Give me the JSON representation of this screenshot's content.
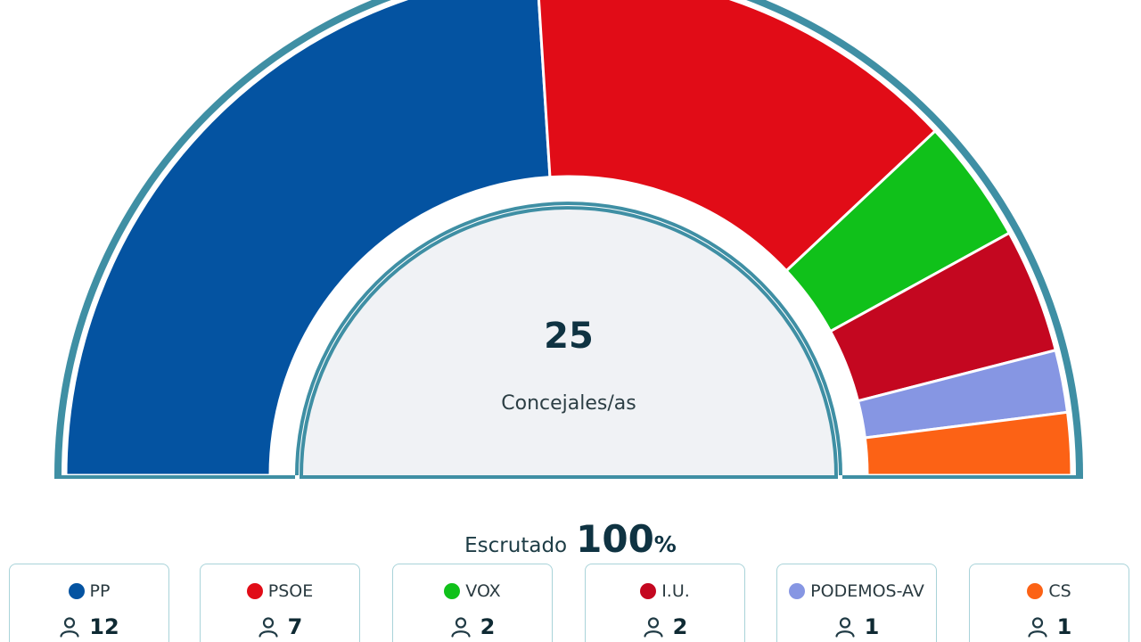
{
  "chart_data": {
    "type": "hemicycle",
    "total": 25,
    "total_label": "Concejales/as",
    "series": [
      {
        "name": "PP",
        "value": 12,
        "color": "#0453a1"
      },
      {
        "name": "PSOE",
        "value": 7,
        "color": "#e10c17"
      },
      {
        "name": "VOX",
        "value": 2,
        "color": "#10c11a"
      },
      {
        "name": "I.U.",
        "value": 2,
        "color": "#c40720"
      },
      {
        "name": "PODEMOS-AV",
        "value": 1,
        "color": "#8696e3"
      },
      {
        "name": "CS",
        "value": 1,
        "color": "#fc6215"
      }
    ]
  },
  "scrutiny": {
    "label": "Escrutado",
    "value": "100",
    "unit": "%"
  },
  "icons": {
    "seats": "person-icon"
  }
}
